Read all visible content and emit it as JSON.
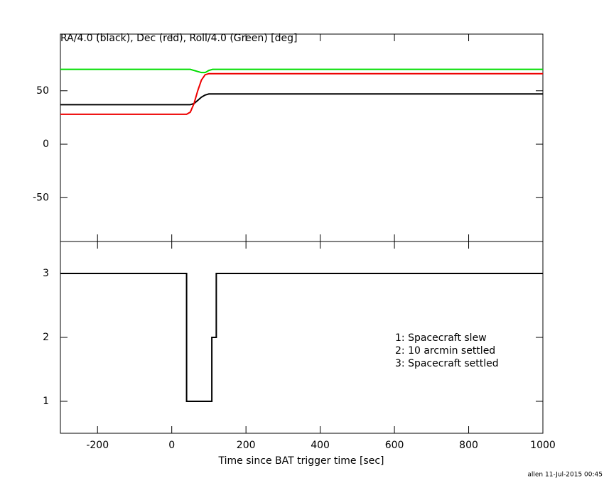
{
  "chart_data": [
    {
      "type": "line",
      "title": "RA/4.0 (black), Dec (red), Roll/4.0 (Green) [deg]",
      "x": [
        -300,
        40,
        50,
        60,
        70,
        80,
        90,
        100,
        110,
        120,
        355,
        1000
      ],
      "series": [
        {
          "color": "#00dd00",
          "values": [
            70,
            70,
            70,
            69,
            68,
            67,
            67,
            69,
            70,
            70,
            70,
            70
          ]
        },
        {
          "color": "#000000",
          "values": [
            37,
            37,
            37,
            38,
            41,
            44,
            46,
            47,
            47,
            47,
            47,
            47
          ]
        },
        {
          "color": "#ee0000",
          "values": [
            28,
            28,
            30,
            38,
            50,
            60,
            65,
            66,
            66,
            66,
            66,
            66
          ]
        }
      ],
      "xlim": [
        -300,
        1000
      ],
      "xticks": [
        -200,
        0,
        200,
        400,
        600,
        800,
        1000
      ],
      "ylim": [
        -91,
        103
      ],
      "yticks": [
        -50,
        0,
        50
      ]
    },
    {
      "type": "step",
      "x": [
        -300,
        40,
        108,
        120,
        1000
      ],
      "values": [
        3,
        1,
        2,
        3,
        3
      ],
      "color": "#000000",
      "xlabel": "Time since BAT trigger time [sec]",
      "xlim": [
        -300,
        1000
      ],
      "xticks": [
        -200,
        0,
        200,
        400,
        600,
        800,
        1000
      ],
      "ylim": [
        0.5,
        3.5
      ],
      "yticks": [
        1,
        2,
        3
      ],
      "annotations": [
        "1: Spacecraft slew",
        "2: 10 arcmin settled",
        "3: Spacecraft settled"
      ],
      "footer": "allen 11-Jul-2015 00:45"
    }
  ]
}
